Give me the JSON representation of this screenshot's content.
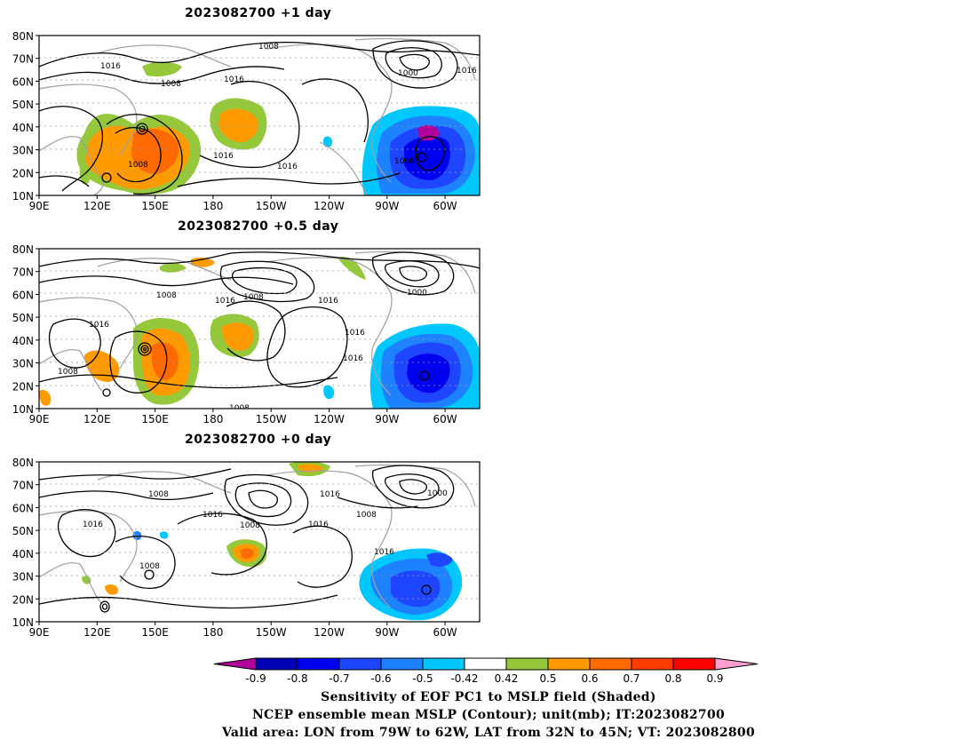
{
  "panels": [
    {
      "title": "2023082700  +1 day",
      "contour_labels": [
        "1008",
        "1016",
        "1008",
        "1016",
        "1000",
        "1016",
        "1008",
        "1016",
        "1016",
        "1008"
      ]
    },
    {
      "title": "2023082700  +0.5 day",
      "contour_labels": [
        "1008",
        "1016",
        "1008",
        "1016",
        "1016",
        "1000",
        "1016",
        "1016",
        "1008",
        "1008",
        "1008"
      ]
    },
    {
      "title": "2023082700  +0 day",
      "contour_labels": [
        "1008",
        "1016",
        "1008",
        "1016",
        "1000",
        "1016",
        "1008",
        "1016",
        "1008",
        "1016",
        "1008"
      ]
    }
  ],
  "lat_labels": [
    "80N",
    "70N",
    "60N",
    "50N",
    "40N",
    "30N",
    "20N",
    "10N"
  ],
  "lon_labels": [
    "90E",
    "120E",
    "150E",
    "180",
    "150W",
    "120W",
    "90W",
    "60W"
  ],
  "colorbar": {
    "colors": [
      "#b0009a",
      "#0000b4",
      "#0000f0",
      "#1e46ff",
      "#1e82ff",
      "#00c8ff",
      "#ffffff",
      "#96c83c",
      "#ff9b00",
      "#ff6a00",
      "#ff3c00",
      "#ff0000",
      "#ff9ed0"
    ],
    "tick_labels": [
      "-0.9",
      "-0.8",
      "-0.7",
      "-0.6",
      "-0.5",
      "-0.42",
      "0.42",
      "0.5",
      "0.6",
      "0.7",
      "0.8",
      "0.9"
    ]
  },
  "caption": {
    "line1": "Sensitivity of EOF PC1 to MSLP field (Shaded)",
    "line2": "NCEP ensemble mean MSLP (Contour); unit(mb); IT:2023082700",
    "line3": "Valid area: LON from 79W to 62W, LAT from 32N to 45N; VT: 2023082800"
  }
}
